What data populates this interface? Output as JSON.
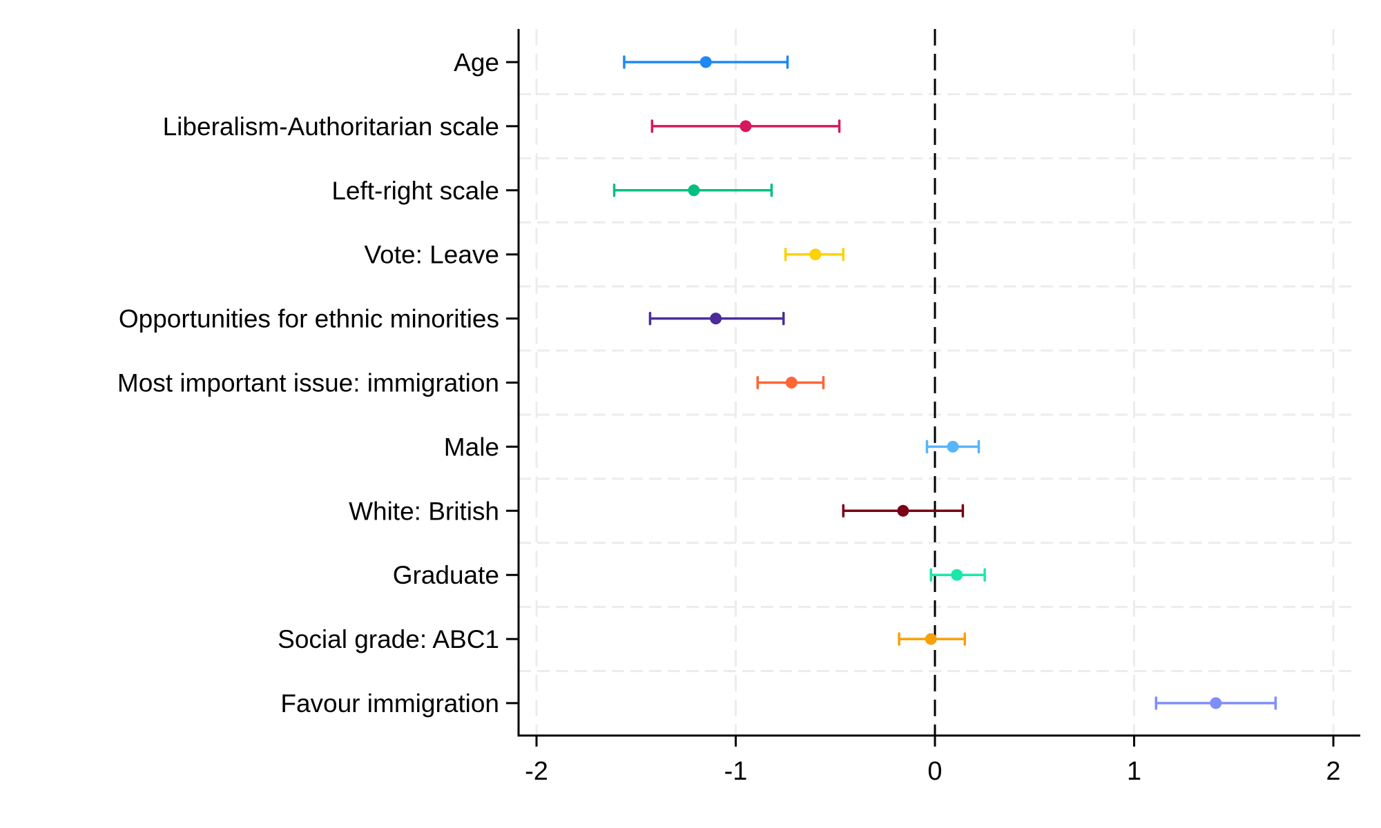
{
  "chart_data": {
    "type": "scatter",
    "subtype": "coefficient-plot-with-error-bars",
    "title": "",
    "xlabel": "",
    "ylabel": "",
    "xlim": [
      -2.1,
      2.08
    ],
    "xticks": [
      -2,
      -1,
      0,
      1,
      2
    ],
    "xtick_labels": [
      "-2",
      "-1",
      "0",
      "1",
      "2"
    ],
    "grid": true,
    "reference_line": {
      "x": 0,
      "style": "dashed",
      "color": "#000000"
    },
    "series": [
      {
        "name": "Age",
        "estimate": -1.15,
        "lower": -1.56,
        "upper": -0.74,
        "color": "#1e88f5"
      },
      {
        "name": "Liberalism-Authoritarian scale",
        "estimate": -0.95,
        "lower": -1.42,
        "upper": -0.48,
        "color": "#d6185c"
      },
      {
        "name": "Left-right scale",
        "estimate": -1.21,
        "lower": -1.61,
        "upper": -0.82,
        "color": "#04c07f"
      },
      {
        "name": "Vote: Leave",
        "estimate": -0.6,
        "lower": -0.75,
        "upper": -0.46,
        "color": "#fdd200"
      },
      {
        "name": "Opportunities for ethnic minorities",
        "estimate": -1.1,
        "lower": -1.43,
        "upper": -0.76,
        "color": "#4c2c9a"
      },
      {
        "name": "Most important issue: immigration",
        "estimate": -0.72,
        "lower": -0.89,
        "upper": -0.56,
        "color": "#fd6535"
      },
      {
        "name": "Male",
        "estimate": 0.09,
        "lower": -0.04,
        "upper": 0.22,
        "color": "#55b6fc"
      },
      {
        "name": "White: British",
        "estimate": -0.16,
        "lower": -0.46,
        "upper": 0.14,
        "color": "#7b0017"
      },
      {
        "name": "Graduate",
        "estimate": 0.11,
        "lower": -0.02,
        "upper": 0.25,
        "color": "#1ae8ab"
      },
      {
        "name": "Social grade: ABC1",
        "estimate": -0.02,
        "lower": -0.18,
        "upper": 0.15,
        "color": "#f6a10a"
      },
      {
        "name": "Favour immigration",
        "estimate": 1.41,
        "lower": 1.11,
        "upper": 1.71,
        "color": "#7f8dfb"
      }
    ]
  }
}
